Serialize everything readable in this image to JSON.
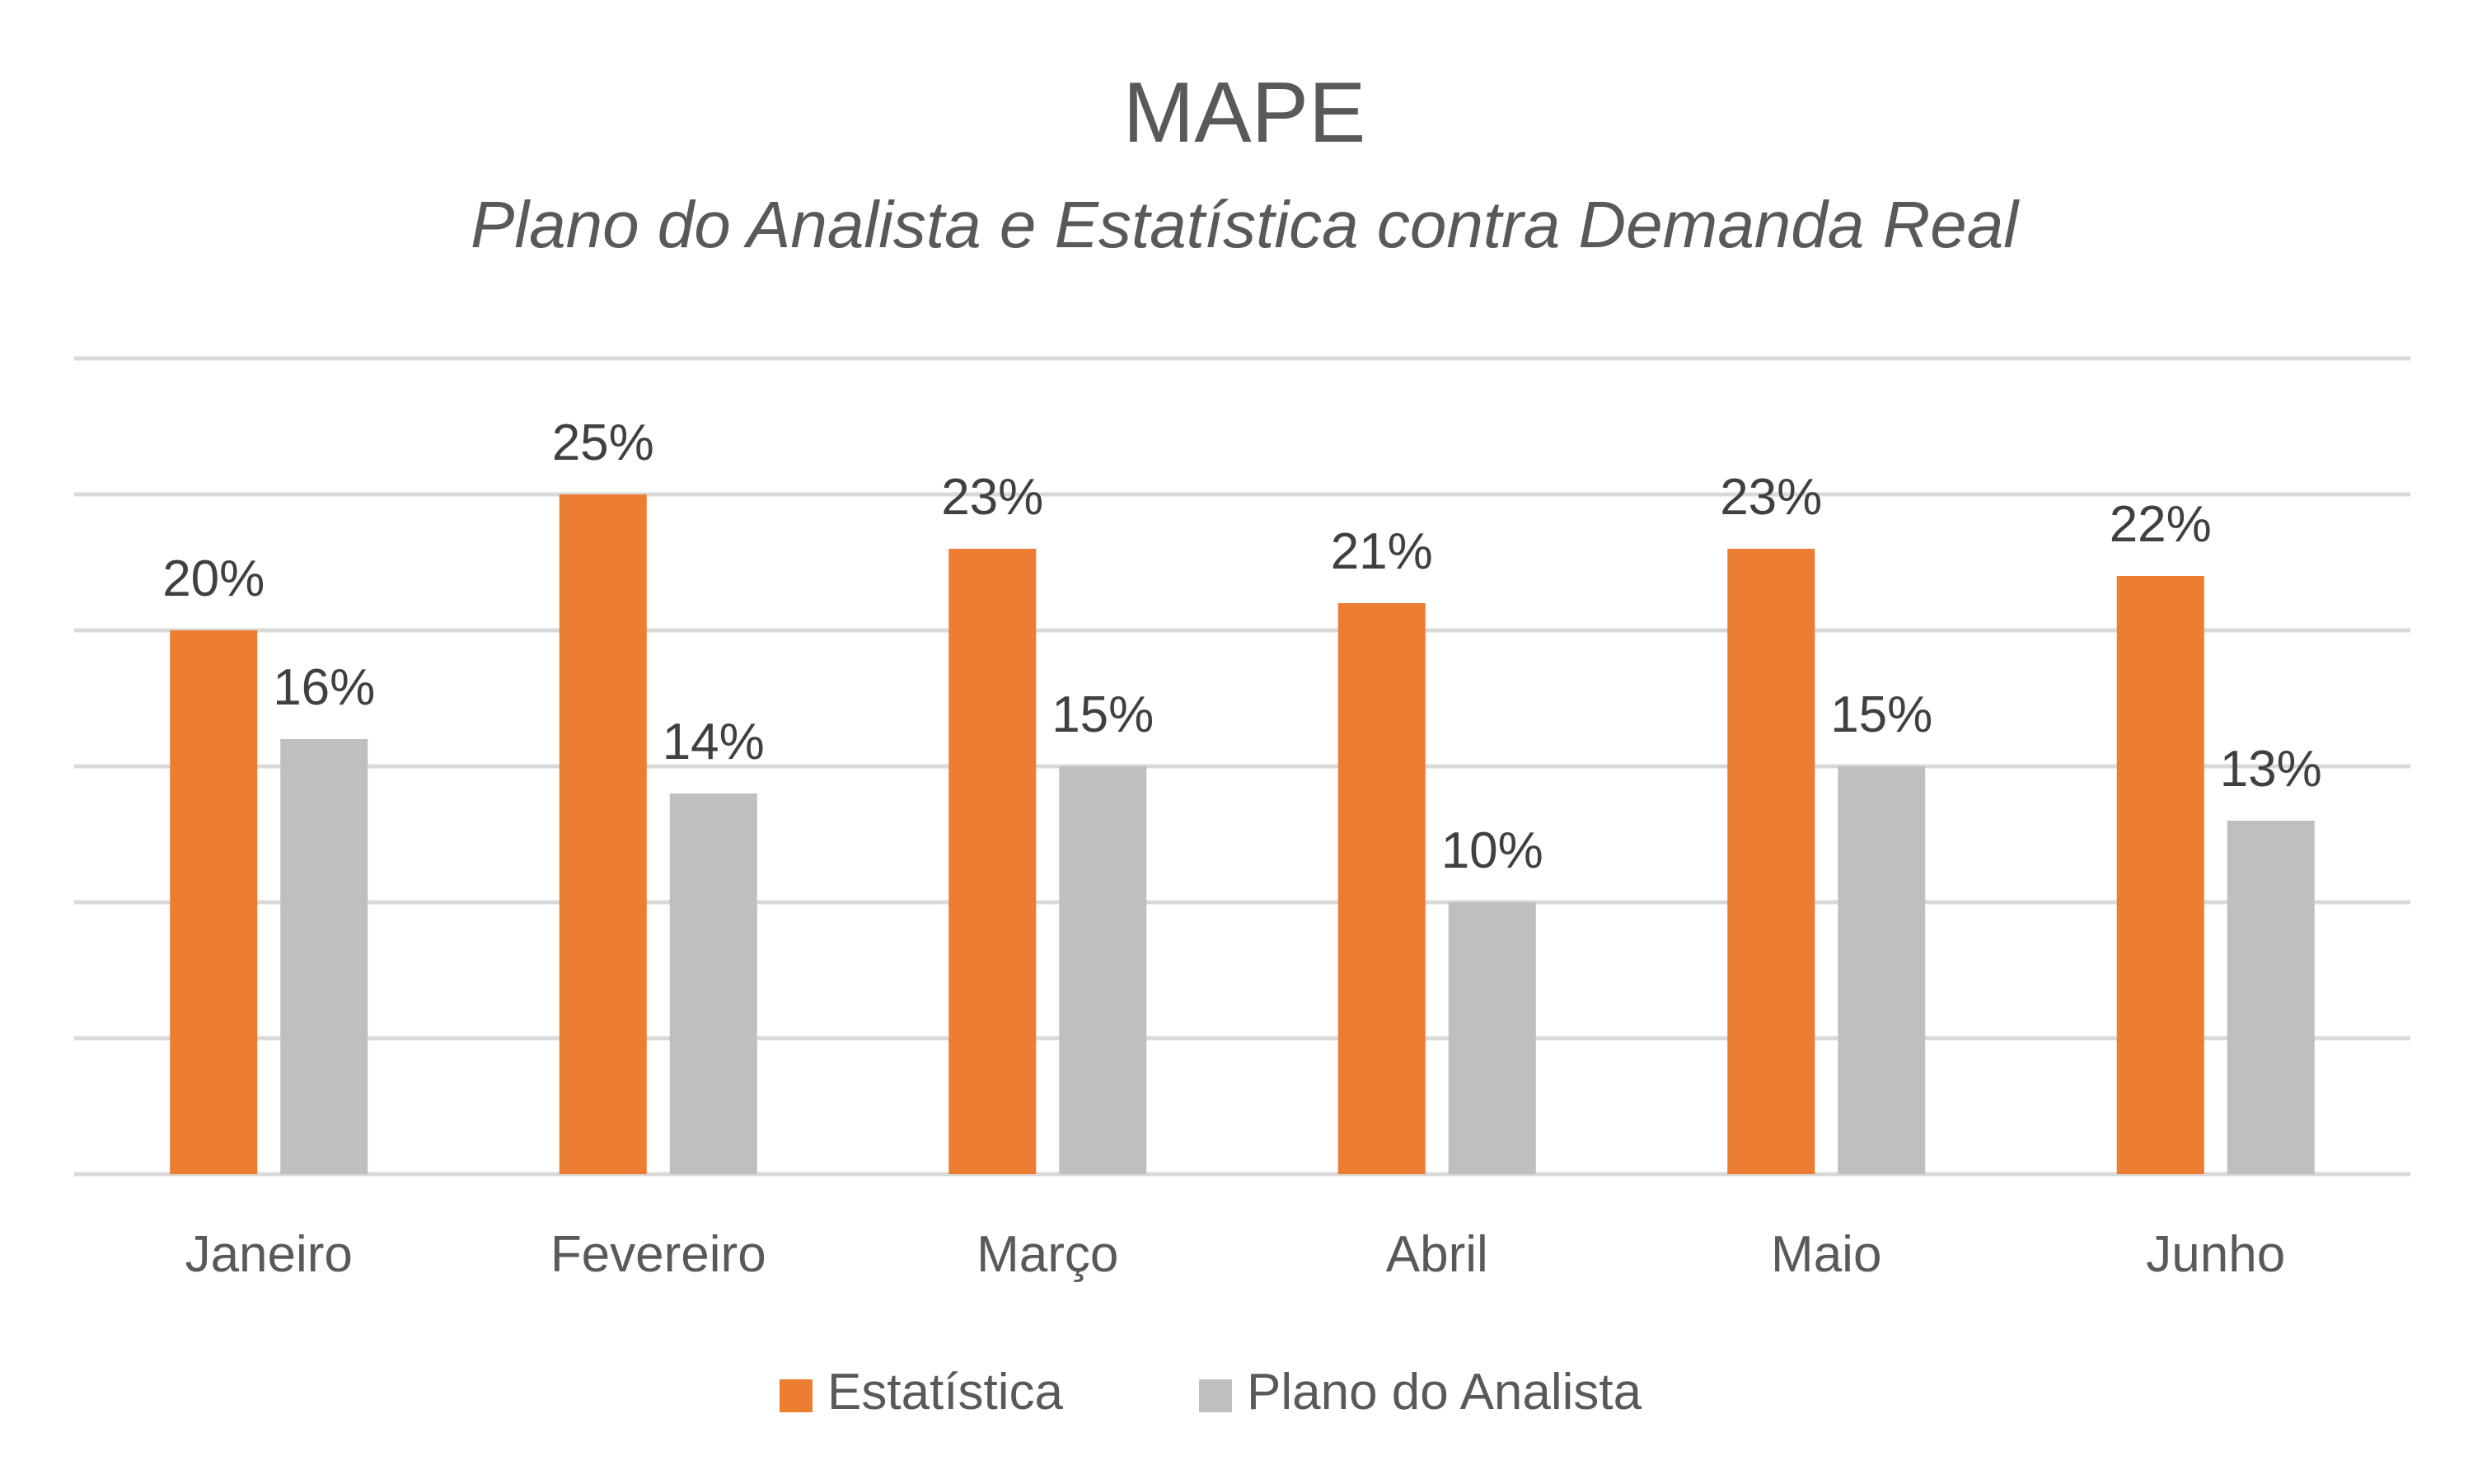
{
  "chart_data": {
    "type": "bar",
    "title": "MAPE",
    "subtitle": "Plano do Analista e Estatística contra Demanda Real",
    "xlabel": "",
    "ylabel": "",
    "categories": [
      "Janeiro",
      "Fevereiro",
      "Março",
      "Abril",
      "Maio",
      "Junho"
    ],
    "series": [
      {
        "name": "Estatística",
        "color": "#ed7d31",
        "values": [
          20,
          25,
          23,
          21,
          23,
          22
        ],
        "labels": [
          "20%",
          "25%",
          "23%",
          "21%",
          "23%",
          "22%"
        ]
      },
      {
        "name": "Plano do Analista",
        "color": "#bfbfbf",
        "values": [
          16,
          14,
          15,
          10,
          15,
          13
        ],
        "labels": [
          "16%",
          "14%",
          "15%",
          "10%",
          "15%",
          "13%"
        ]
      }
    ],
    "ylim": [
      0,
      30
    ],
    "ytick_step": 5,
    "y_axis_visible": false,
    "grid": true,
    "legend_position": "bottom"
  }
}
